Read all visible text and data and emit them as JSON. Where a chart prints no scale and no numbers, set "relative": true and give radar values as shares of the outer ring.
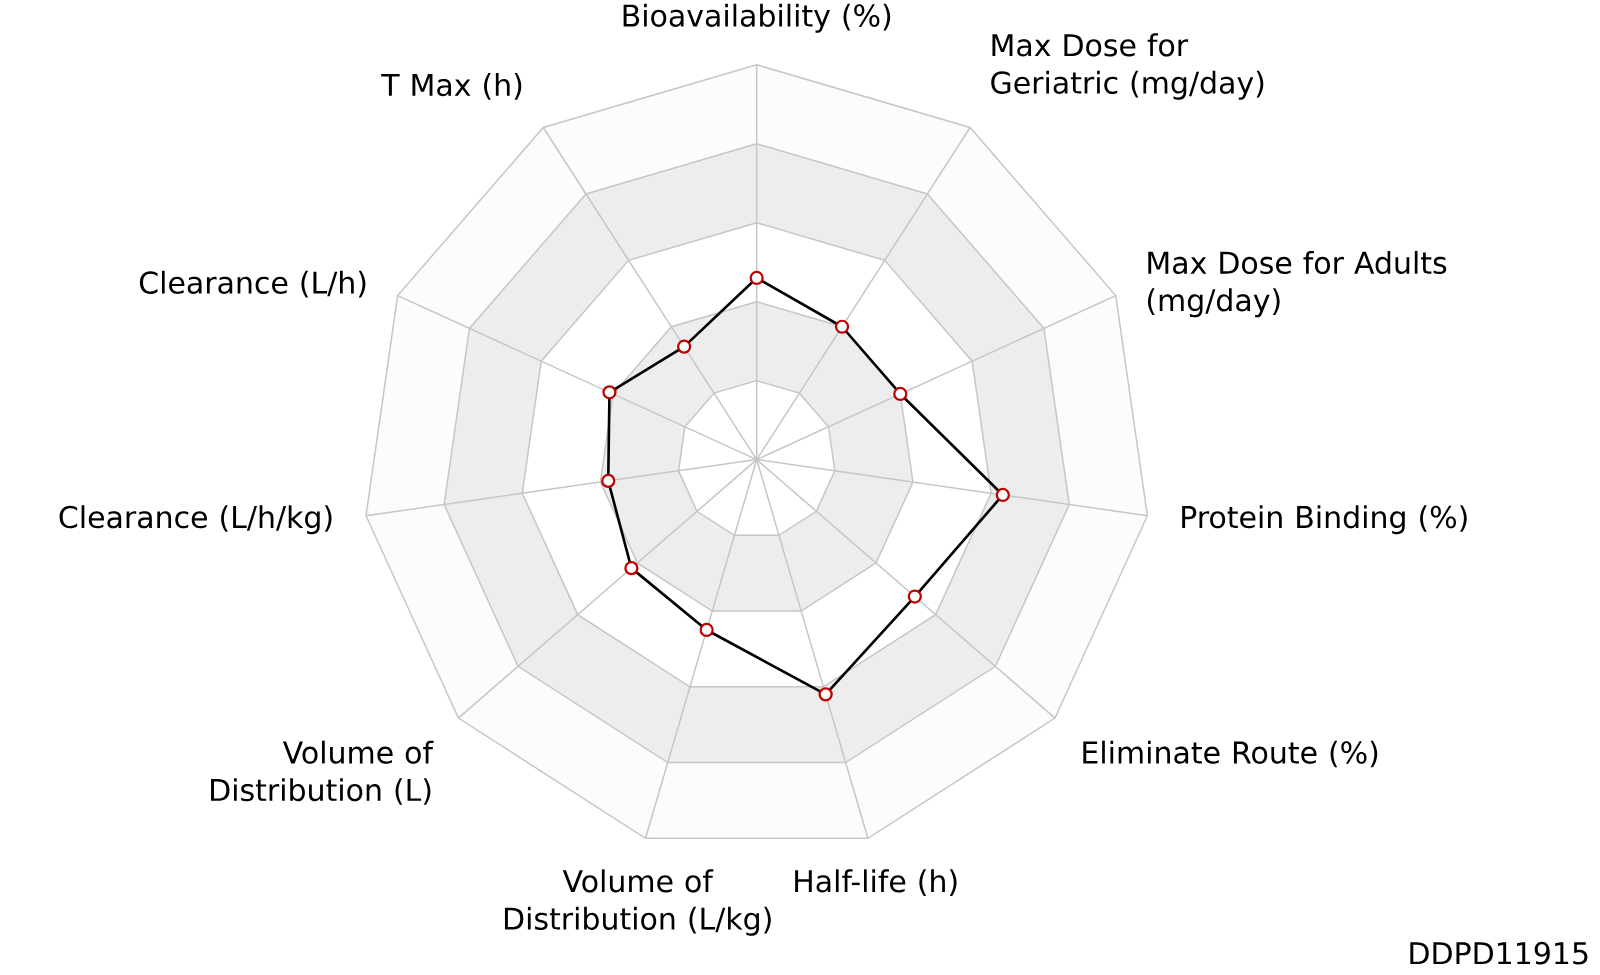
{
  "chart_data": {
    "type": "radar",
    "categories": [
      "Bioavailability (%)",
      "Max Dose for Geriatric (mg/day)",
      "Max Dose for Adults (mg/day)",
      "Protein Binding (%)",
      "Eliminate Route (%)",
      "Half-life (h)",
      "Volume of Distribution (L/kg)",
      "Volume of Distribution (L)",
      "Clearance (L/h/kg)",
      "Clearance (L/h)",
      "T Max (h)"
    ],
    "series": [
      {
        "color": "#000000",
        "values": [
          0.46,
          0.4,
          0.4,
          0.63,
          0.53,
          0.62,
          0.45,
          0.42,
          0.38,
          0.41,
          0.34
        ]
      }
    ],
    "relative": true,
    "marker": "circle",
    "annotations": [
      "DDPD11915"
    ]
  }
}
